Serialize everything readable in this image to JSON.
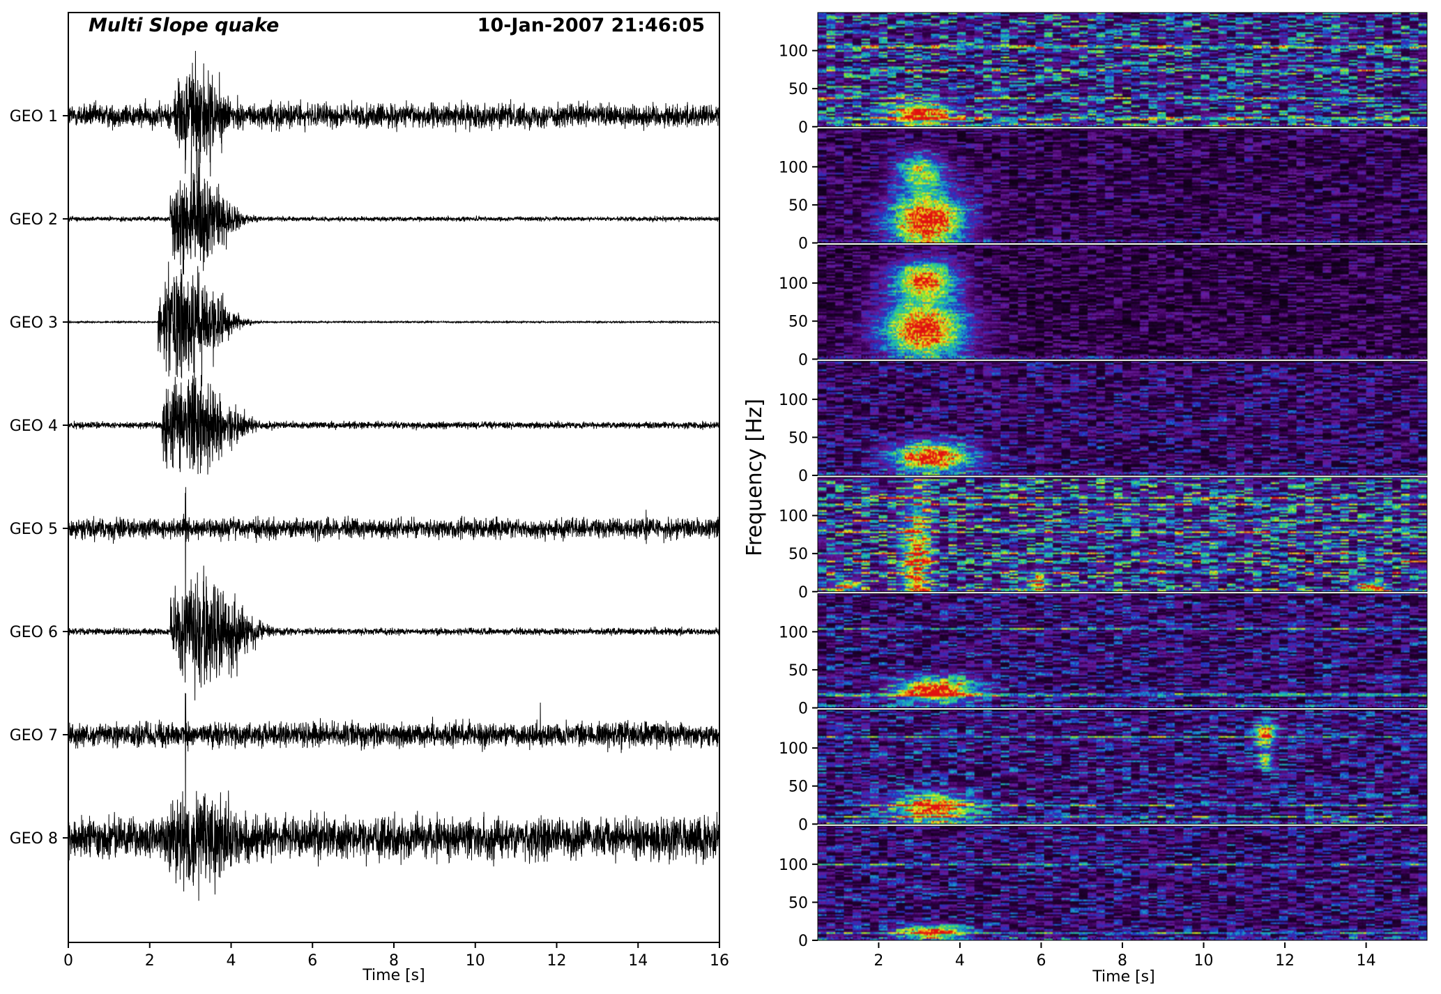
{
  "chart_data": [
    {
      "type": "line",
      "panel": "waveforms",
      "title": "Multi Slope quake",
      "timestamp": "10-Jan-2007 21:46:05",
      "xlabel": "Time [s]",
      "xlim": [
        0,
        16
      ],
      "xticks": [
        "0",
        "2",
        "4",
        "6",
        "8",
        "10",
        "12",
        "14",
        "16"
      ],
      "line_color": "#000000",
      "series": [
        {
          "name": "GEO 1",
          "noise": 0.42,
          "event_amp": 1.6,
          "onset": 2.6,
          "duration": 1.6,
          "spikes": []
        },
        {
          "name": "GEO 2",
          "noise": 0.08,
          "event_amp": 1.6,
          "onset": 2.5,
          "duration": 1.8,
          "spikes": []
        },
        {
          "name": "GEO 3",
          "noise": 0.03,
          "event_amp": 1.6,
          "onset": 2.2,
          "duration": 2.0,
          "spikes": []
        },
        {
          "name": "GEO 4",
          "noise": 0.12,
          "event_amp": 1.6,
          "onset": 2.3,
          "duration": 2.2,
          "spikes": []
        },
        {
          "name": "GEO 5",
          "noise": 0.35,
          "event_amp": 0.2,
          "onset": 2.8,
          "duration": 0.3,
          "spikes": [
            [
              2.88,
              1.7
            ],
            [
              14.2,
              0.5
            ]
          ]
        },
        {
          "name": "GEO 6",
          "noise": 0.12,
          "event_amp": 1.6,
          "onset": 2.5,
          "duration": 2.4,
          "spikes": []
        },
        {
          "name": "GEO 7",
          "noise": 0.42,
          "event_amp": 0.2,
          "onset": 2.8,
          "duration": 0.3,
          "spikes": [
            [
              2.88,
              2.0
            ],
            [
              11.6,
              0.5
            ]
          ]
        },
        {
          "name": "GEO 8",
          "noise": 0.72,
          "event_amp": 1.3,
          "onset": 2.4,
          "duration": 2.4,
          "spikes": []
        }
      ]
    },
    {
      "type": "heatmap",
      "panel": "spectrograms",
      "ylabel": "Frequency [Hz]",
      "xlabel": "Time [s]",
      "xlim": [
        0.5,
        15.5
      ],
      "ylim": [
        0,
        150
      ],
      "xticks": [
        "2",
        "4",
        "6",
        "8",
        "10",
        "12",
        "14"
      ],
      "yticks": [
        "0",
        "50",
        "100"
      ],
      "colormap": [
        "#000000",
        "#3a0058",
        "#6a1a9a",
        "#2030c0",
        "#1a90d0",
        "#20c8a0",
        "#80e030",
        "#f0f020",
        "#f08010",
        "#e01010"
      ],
      "panels": [
        {
          "name": "GEO 1",
          "background": 0.3,
          "events": [
            {
              "t": 3.0,
              "dt": 1.3,
              "f": 18,
              "df": 22,
              "level": 0.9
            }
          ],
          "lines": [
            12,
            38,
            75,
            106
          ]
        },
        {
          "name": "GEO 2",
          "background": 0.14,
          "events": [
            {
              "t": 3.2,
              "dt": 1.6,
              "f": 30,
              "df": 60,
              "level": 1.0
            },
            {
              "t": 3.0,
              "dt": 1.0,
              "f": 95,
              "df": 40,
              "level": 0.6
            }
          ],
          "lines": []
        },
        {
          "name": "GEO 3",
          "background": 0.12,
          "events": [
            {
              "t": 3.1,
              "dt": 1.8,
              "f": 40,
              "df": 60,
              "level": 1.0
            },
            {
              "t": 3.1,
              "dt": 1.4,
              "f": 105,
              "df": 40,
              "level": 0.85
            }
          ],
          "lines": []
        },
        {
          "name": "GEO 4",
          "background": 0.18,
          "events": [
            {
              "t": 3.3,
              "dt": 1.7,
              "f": 25,
              "df": 30,
              "level": 0.95
            }
          ],
          "lines": []
        },
        {
          "name": "GEO 5",
          "background": 0.32,
          "events": [
            {
              "t": 2.9,
              "dt": 0.6,
              "f": 40,
              "df": 130,
              "level": 0.65
            },
            {
              "t": 5.9,
              "dt": 0.4,
              "f": 12,
              "df": 25,
              "level": 0.55
            },
            {
              "t": 14.1,
              "dt": 0.6,
              "f": 8,
              "df": 12,
              "level": 0.75
            },
            {
              "t": 1.2,
              "dt": 0.6,
              "f": 10,
              "df": 10,
              "level": 0.6
            }
          ],
          "lines": [
            25,
            40,
            52,
            80,
            95,
            115,
            125
          ]
        },
        {
          "name": "GEO 6",
          "background": 0.2,
          "events": [
            {
              "t": 3.4,
              "dt": 1.7,
              "f": 25,
              "df": 25,
              "level": 0.95
            }
          ],
          "lines": [
            18,
            105
          ]
        },
        {
          "name": "GEO 7",
          "background": 0.22,
          "events": [
            {
              "t": 3.3,
              "dt": 1.6,
              "f": 22,
              "df": 28,
              "level": 0.9
            },
            {
              "t": 11.5,
              "dt": 0.4,
              "f": 120,
              "df": 25,
              "level": 0.8
            },
            {
              "t": 11.5,
              "dt": 0.3,
              "f": 85,
              "df": 18,
              "level": 0.6
            }
          ],
          "lines": [
            10,
            25,
            115
          ]
        },
        {
          "name": "GEO 8",
          "background": 0.2,
          "events": [
            {
              "t": 3.3,
              "dt": 1.4,
              "f": 12,
              "df": 14,
              "level": 0.9
            }
          ],
          "lines": [
            10,
            100
          ]
        }
      ]
    }
  ]
}
